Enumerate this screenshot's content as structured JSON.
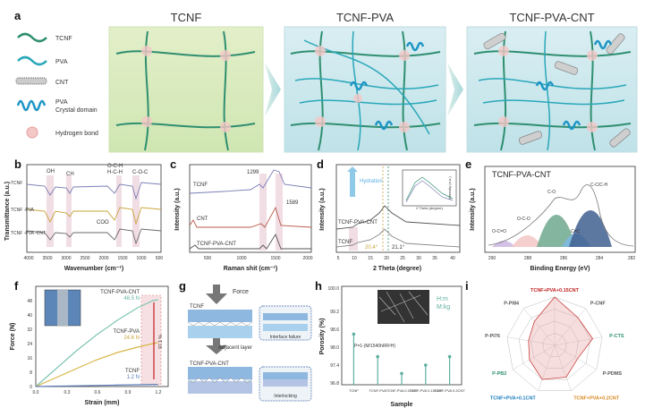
{
  "panels": {
    "a": {
      "label": "a",
      "titles": [
        "TCNF",
        "TCNF-PVA",
        "TCNF-PVA-CNT"
      ],
      "legend": [
        "TCNF",
        "PVA",
        "CNT",
        "PVA",
        "Crystal domain",
        "Hydrogen bond"
      ]
    },
    "b": {
      "label": "b",
      "ylabel": "Transmittance (a.u.)",
      "xlabel": "Wavenumber (cm⁻¹)",
      "xticks": [
        "4000",
        "3500",
        "3000",
        "2500",
        "2000",
        "1500",
        "1000",
        "500"
      ],
      "series": [
        "TCNF",
        "TCNF -PVA",
        "TCNF -PVA -CNT"
      ],
      "annotations": [
        "OH",
        "CH",
        "O-C-H",
        "H-C-H",
        "C-O-C",
        "COO"
      ]
    },
    "c": {
      "label": "c",
      "ylabel": "Intensity (a.u.)",
      "xlabel": "Raman shit (cm⁻¹)",
      "xticks": [
        "500",
        "1000",
        "1500",
        "2000"
      ],
      "series": [
        "TCNF",
        "CNT",
        "TCNF-PVA-CNT"
      ],
      "annotations": [
        "1299",
        "1589"
      ]
    },
    "d": {
      "label": "d",
      "ylabel": "Intensity (a.u.)",
      "xlabel": "2 Theta (degree)",
      "xticks": [
        "5",
        "10",
        "15",
        "20",
        "25",
        "30",
        "35",
        "40"
      ],
      "series": [
        "TCNF-PVA-CNT",
        "TCNF"
      ],
      "annotations": [
        "Hydration",
        "20.4°",
        "21.1°"
      ],
      "inset": {
        "xlabel": "2 Theta (degree)",
        "ylabel": "Intensity (a.u.)"
      }
    },
    "e": {
      "label": "e",
      "title": "TCNF-PVA-CNT",
      "ylabel": "Intensity (a.u.)",
      "xlabel": "Binding Energy (eV)",
      "xticks": [
        "290",
        "288",
        "286",
        "284",
        "282"
      ],
      "peaks": [
        "O-C=O",
        "O-C-O",
        "C-O",
        "C=C",
        "C-C/C-H"
      ]
    },
    "f": {
      "label": "f",
      "ylabel": "Force (N)",
      "xlabel": "Strain (mm)",
      "xticks": [
        "0.0",
        "0.3",
        "0.6",
        "0.9",
        "1.2"
      ],
      "yticks": [
        "0",
        "8",
        "16",
        "24",
        "32",
        "40",
        "48"
      ],
      "series": [
        {
          "name": "TCNF-PVA-CNT",
          "value_label": "48.5 N"
        },
        {
          "name": "TCNF-PVA",
          "value_label": "24.6 N"
        },
        {
          "name": "TCNF",
          "value_label": "1.2 N"
        }
      ],
      "side_note": "97.1 %"
    },
    "g": {
      "label": "g",
      "labels": [
        "Force",
        "TCNF",
        "Adjacent layer",
        "TCNF-PVA-CNT",
        "Interface failure",
        "Interlocking"
      ]
    },
    "h": {
      "label": "h",
      "ylabel": "Porosity (%)",
      "xlabel": "Sample",
      "yticks": [
        "96.8",
        "97.4",
        "98.0",
        "98.6",
        "99.2",
        "100.0"
      ],
      "categories": [
        "TCNF",
        "TCNF-PVA",
        "TCNF-PVA 0.1CNT",
        "TCNF-PVA 0.15CNT",
        "TCNF-PVA 0.2CNT"
      ],
      "formula": "P=1-(M/1540hRR²H)",
      "legend": [
        "H:m",
        "M:kg"
      ]
    },
    "i": {
      "label": "i",
      "axes": [
        "TCNF+PVA+0.15CNT",
        "P-CNF",
        "P-CTS",
        "P-PDMS",
        "TCNF+PVA+0.2CNT",
        "TCNF+PVA+0.1CNT",
        "P-PB2",
        "P-PI76",
        "P-PI84"
      ]
    }
  },
  "chart_data": [
    {
      "type": "line",
      "panel": "f",
      "xlabel": "Strain (mm)",
      "ylabel": "Force (N)",
      "xlim": [
        0,
        1.3
      ],
      "ylim": [
        0,
        56
      ],
      "series": [
        {
          "name": "TCNF-PVA-CNT",
          "x": [
            0,
            0.2,
            0.4,
            0.6,
            0.8,
            1.0,
            1.15,
            1.2
          ],
          "y": [
            0,
            10,
            20,
            29,
            37,
            44,
            48,
            48.5
          ]
        },
        {
          "name": "TCNF-PVA",
          "x": [
            0,
            0.2,
            0.4,
            0.6,
            0.8,
            1.0,
            1.15,
            1.2
          ],
          "y": [
            0,
            5,
            10,
            15,
            19,
            22,
            24,
            24.6
          ]
        },
        {
          "name": "TCNF",
          "x": [
            0,
            0.4,
            0.8,
            1.2
          ],
          "y": [
            0,
            0.4,
            0.8,
            1.2
          ]
        }
      ]
    },
    {
      "type": "bar",
      "panel": "h",
      "categories": [
        "TCNF",
        "TCNF-PVA",
        "TCNF-PVA 0.1CNT",
        "TCNF-PVA 0.15CNT",
        "TCNF-PVA 0.2CNT"
      ],
      "values": [
        98.3,
        97.5,
        96.9,
        97.2,
        97.5
      ],
      "xlabel": "Sample",
      "ylabel": "Porosity (%)",
      "ylim": [
        96.5,
        100
      ]
    },
    {
      "type": "radar",
      "panel": "i",
      "axes": [
        "TCNF+PVA+0.15CNT",
        "P-CNF",
        "P-CTS",
        "P-PDMS",
        "TCNF+PVA+0.2CNT",
        "TCNF+PVA+0.1CNT",
        "P-PB2",
        "P-PI76",
        "P-PI84"
      ],
      "values": [
        1.0,
        0.75,
        0.8,
        0.55,
        0.7,
        0.75,
        0.6,
        0.55,
        0.65
      ]
    }
  ]
}
